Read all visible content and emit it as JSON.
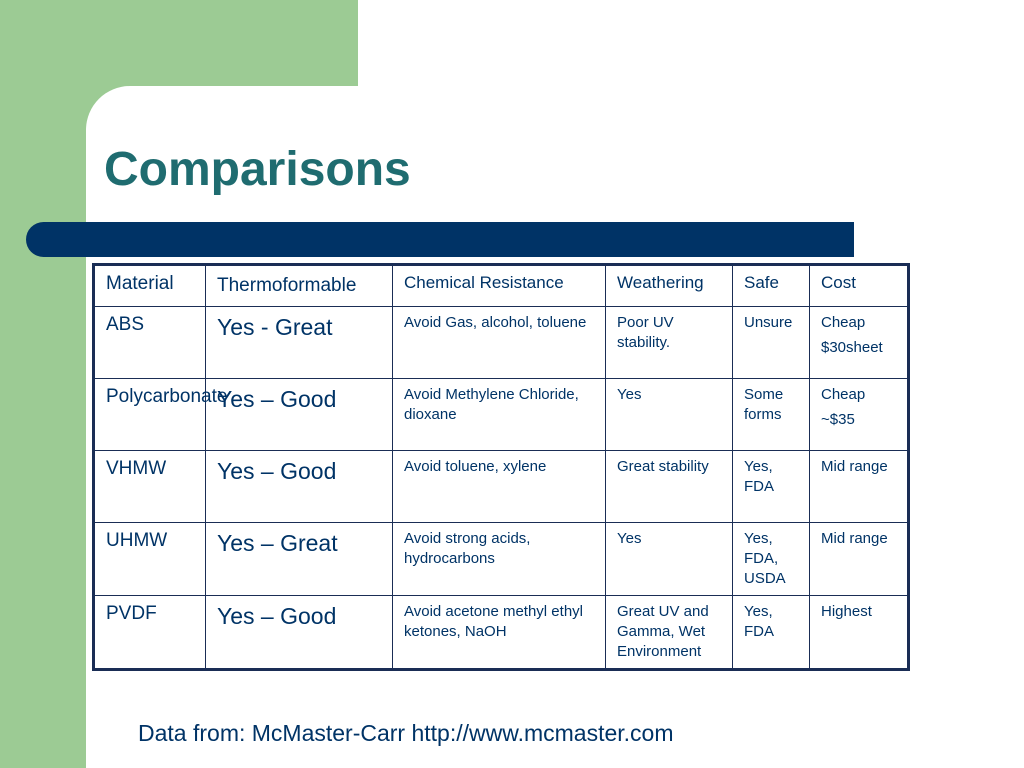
{
  "slide": {
    "title": "Comparisons",
    "footer": "Data from: McMaster-Carr http://www.mcmaster.com"
  },
  "table": {
    "headers": [
      "Material",
      "Thermoformable",
      "Chemical Resistance",
      "Weathering",
      "Safe",
      "Cost"
    ],
    "rows": [
      {
        "material": "ABS",
        "thermo": "Yes - Great",
        "chemical": "Avoid Gas, alcohol, toluene",
        "weathering": "Poor UV stability.",
        "safe": "Unsure",
        "cost": [
          "Cheap",
          "$30sheet"
        ]
      },
      {
        "material": "Polycarbonate",
        "thermo": "Yes – Good",
        "chemical": "Avoid Methylene Chloride, dioxane",
        "weathering": "Yes",
        "safe": "Some forms",
        "cost": [
          "Cheap",
          "~$35"
        ]
      },
      {
        "material": "VHMW",
        "thermo": "Yes – Good",
        "chemical": "Avoid toluene, xylene",
        "weathering": "Great stability",
        "safe": "Yes, FDA",
        "cost": [
          "Mid range"
        ]
      },
      {
        "material": "UHMW",
        "thermo": "Yes – Great",
        "chemical": "Avoid strong acids, hydrocarbons",
        "weathering": "Yes",
        "safe": "Yes, FDA, USDA",
        "cost": [
          "Mid range"
        ]
      },
      {
        "material": "PVDF",
        "thermo": "Yes – Good",
        "chemical": "Avoid acetone methyl ethyl ketones, NaOH",
        "weathering": "Great UV and Gamma, Wet Environment",
        "safe": "Yes, FDA",
        "cost": [
          "Highest"
        ]
      }
    ]
  }
}
